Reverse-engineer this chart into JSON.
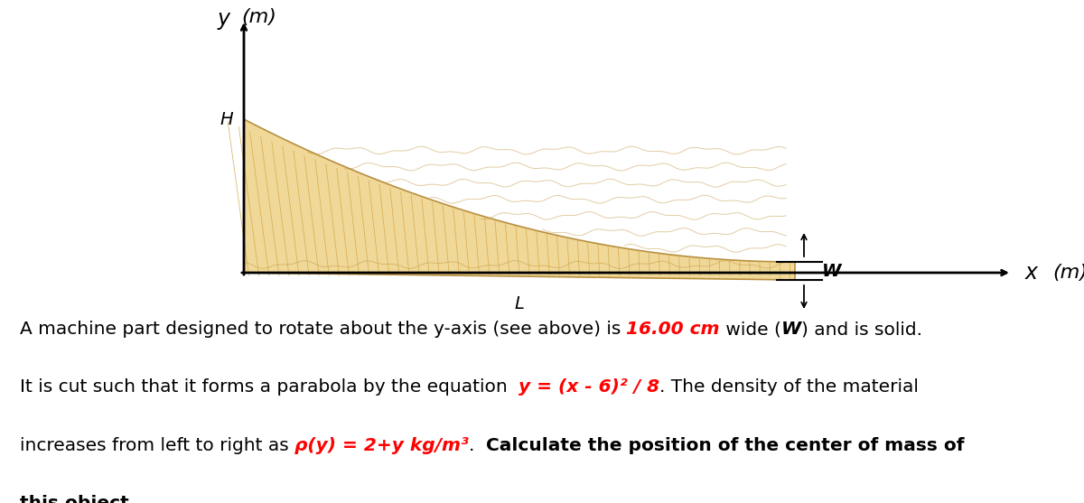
{
  "bg_color": "#ffffff",
  "wood_face_color": "#f0d898",
  "wood_edge_color": "#b89040",
  "wood_grain_color": "#d4a84b",
  "wood_dark_grain": "#c09035",
  "body_fontsize": 14.5,
  "axis_label_y": "y (m)",
  "axis_label_x": "x (m)",
  "label_H": "H",
  "label_L": "L",
  "label_W": "W"
}
